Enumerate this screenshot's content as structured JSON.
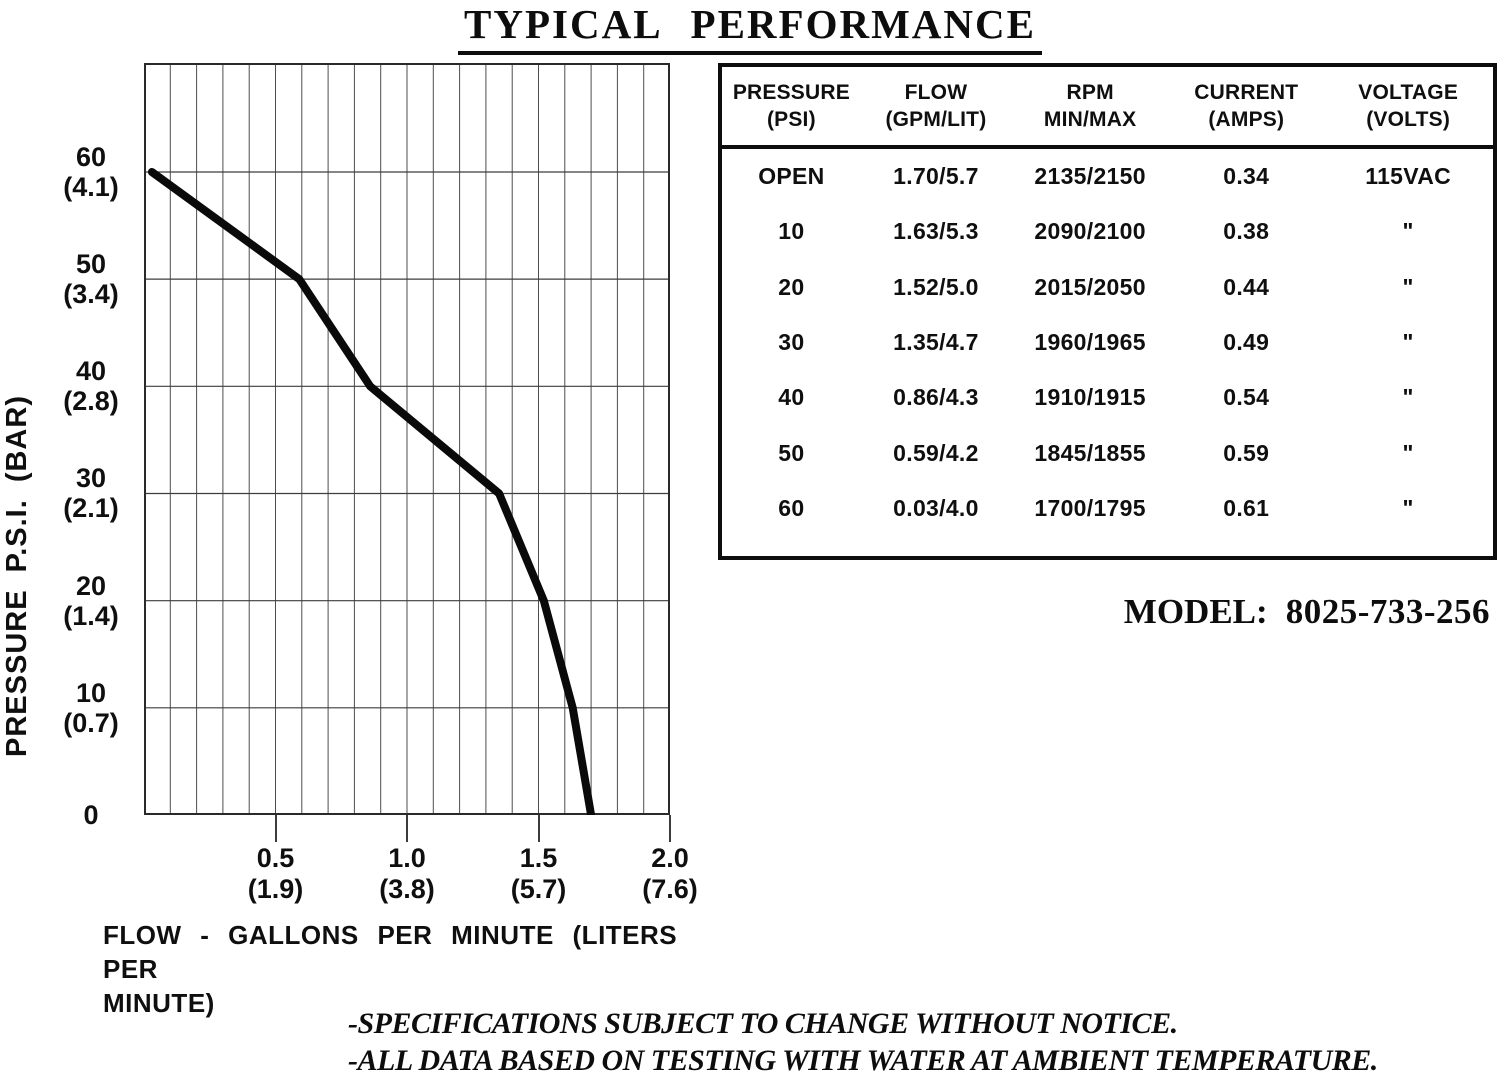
{
  "title": "TYPICAL PERFORMANCE",
  "chart_data": {
    "type": "line",
    "title": "TYPICAL PERFORMANCE",
    "xlabel": "FLOW - GALLONS PER MINUTE (LITERS PER MINUTE)",
    "ylabel": "PRESSURE P.S.I. (BAR)",
    "xlim": [
      0,
      2.0
    ],
    "ylim": [
      0,
      70
    ],
    "grid": true,
    "legend": false,
    "x_major_ticks": [
      0.5,
      1.0,
      1.5,
      2.0
    ],
    "x_minor_grid_step_gpm": 0.1,
    "y_grid_step_psi": 10,
    "series": [
      {
        "name": "pressure-vs-flow-curve",
        "points_flow_gpm_vs_pressure_psi": [
          [
            0.03,
            60
          ],
          [
            0.59,
            50
          ],
          [
            0.86,
            40
          ],
          [
            1.35,
            30
          ],
          [
            1.52,
            20
          ],
          [
            1.63,
            10
          ],
          [
            1.7,
            0
          ]
        ]
      }
    ]
  },
  "chart_labels": {
    "y_axis_title": "PRESSURE P.S.I.  (BAR)",
    "x_axis_title_line1": "FLOW - GALLONS PER MINUTE  (LITERS PER",
    "x_axis_title_line2": "MINUTE)",
    "y_ticks": [
      {
        "psi": "60",
        "bar": "(4.1)"
      },
      {
        "psi": "50",
        "bar": "(3.4)"
      },
      {
        "psi": "40",
        "bar": "(2.8)"
      },
      {
        "psi": "30",
        "bar": "(2.1)"
      },
      {
        "psi": "20",
        "bar": "(1.4)"
      },
      {
        "psi": "10",
        "bar": "(0.7)"
      },
      {
        "psi": "0",
        "bar": ""
      }
    ],
    "x_ticks": [
      {
        "gpm": "0.5",
        "lit": "(1.9)"
      },
      {
        "gpm": "1.0",
        "lit": "(3.8)"
      },
      {
        "gpm": "1.5",
        "lit": "(5.7)"
      },
      {
        "gpm": "2.0",
        "lit": "(7.6)"
      }
    ]
  },
  "table": {
    "headers": [
      {
        "line1": "PRESSURE",
        "line2": "(PSI)"
      },
      {
        "line1": "FLOW",
        "line2": "(GPM/LIT)"
      },
      {
        "line1": "RPM",
        "line2": "MIN/MAX"
      },
      {
        "line1": "CURRENT",
        "line2": "(AMPS)"
      },
      {
        "line1": "VOLTAGE",
        "line2": "(VOLTS)"
      }
    ],
    "rows": [
      [
        "OPEN",
        "1.70/5.7",
        "2135/2150",
        "0.34",
        "115VAC"
      ],
      [
        "10",
        "1.63/5.3",
        "2090/2100",
        "0.38",
        "\""
      ],
      [
        "20",
        "1.52/5.0",
        "2015/2050",
        "0.44",
        "\""
      ],
      [
        "30",
        "1.35/4.7",
        "1960/1965",
        "0.49",
        "\""
      ],
      [
        "40",
        "0.86/4.3",
        "1910/1915",
        "0.54",
        "\""
      ],
      [
        "50",
        "0.59/4.2",
        "1845/1855",
        "0.59",
        "\""
      ],
      [
        "60",
        "0.03/4.0",
        "1700/1795",
        "0.61",
        "\""
      ]
    ]
  },
  "model": {
    "label": "MODEL:",
    "value": "8025-733-256"
  },
  "notes": [
    "-SPECIFICATIONS SUBJECT TO CHANGE WITHOUT NOTICE.",
    "-ALL DATA BASED ON TESTING WITH WATER AT AMBIENT TEMPERATURE."
  ],
  "colors": {
    "ink": "#0d0d0d",
    "grid_vertical": "#4d4d4d",
    "grid_horizontal": "#3d3d3d",
    "curve": "#0a0a0a",
    "background": "#ffffff"
  }
}
